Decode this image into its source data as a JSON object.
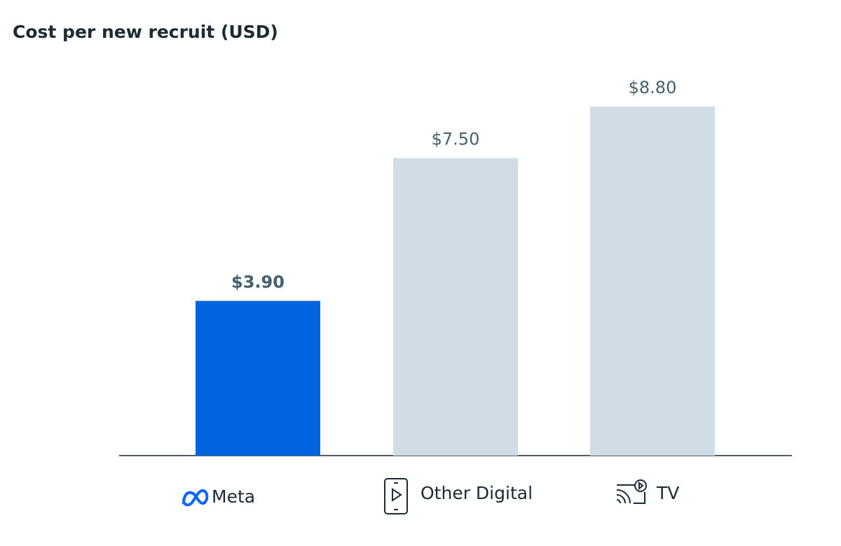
{
  "chart_data": {
    "type": "bar",
    "title": "Cost per new recruit (USD)",
    "categories": [
      "Meta",
      "Other Digital",
      "TV"
    ],
    "values": [
      3.9,
      7.5,
      8.8
    ],
    "value_labels": [
      "$3.90",
      "$7.50",
      "$8.80"
    ],
    "colors": [
      "#0064e0",
      "#d0dce6",
      "#d0dce6"
    ]
  }
}
